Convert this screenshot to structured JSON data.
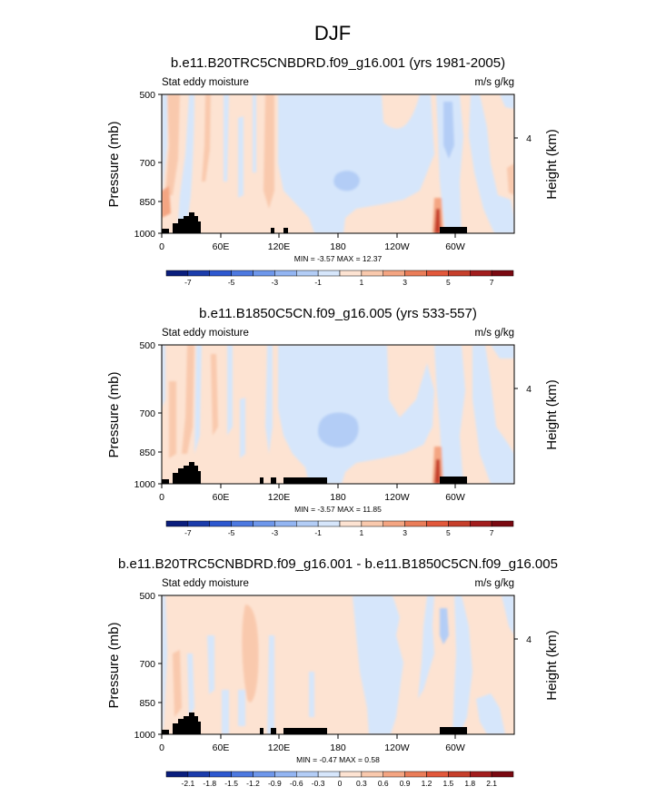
{
  "page_title": "DJF",
  "colors": {
    "pos": [
      "#fde3d2",
      "#f9c9ad",
      "#f4a582",
      "#ea7d59",
      "#e2583b",
      "#c63f2b",
      "#a21d1d",
      "#7a0911"
    ],
    "neg": [
      "#d6e6fb",
      "#b3cdf6",
      "#93b5f2",
      "#6e97eb",
      "#4d79e0",
      "#2d58cf",
      "#1b3cab",
      "#0a1e7d"
    ],
    "land": "#000000"
  },
  "chart_data": [
    {
      "type": "contour",
      "title": "b.e11.B20TRC5CNBDRD.f09_g16.001 (yrs 1981-2005)",
      "left_label": "Stat eddy moisture",
      "right_label": "m/s g/kg",
      "ylabel": "Pressure (mb)",
      "ylabel_right": "Height (km)",
      "y_ticks": [
        "500",
        "700",
        "850",
        "1000"
      ],
      "y_tick_values": [
        500,
        700,
        850,
        1000
      ],
      "x_ticks": [
        "0",
        "60E",
        "120E",
        "180",
        "120W",
        "60W"
      ],
      "x_tick_values": [
        0,
        60,
        120,
        180,
        240,
        300
      ],
      "xlim": [
        0,
        360
      ],
      "ylim": [
        1000,
        500
      ],
      "right_ticks": [
        "4"
      ],
      "stats": "MIN = -3.57   MAX = 12.37",
      "colorbar": {
        "levels": [
          -8,
          -7,
          -6,
          -5,
          -4,
          -3,
          -2,
          -1,
          0,
          1,
          2,
          3,
          4,
          5,
          6,
          7,
          8
        ],
        "labels": [
          "-7",
          "-5",
          "-3",
          "-1",
          "1",
          "3",
          "5",
          "7"
        ]
      }
    },
    {
      "type": "contour",
      "title": "b.e11.B1850C5CN.f09_g16.005 (yrs 533-557)",
      "left_label": "Stat eddy moisture",
      "right_label": "m/s g/kg",
      "ylabel": "Pressure (mb)",
      "ylabel_right": "Height (km)",
      "y_ticks": [
        "500",
        "700",
        "850",
        "1000"
      ],
      "y_tick_values": [
        500,
        700,
        850,
        1000
      ],
      "x_ticks": [
        "0",
        "60E",
        "120E",
        "180",
        "120W",
        "60W"
      ],
      "x_tick_values": [
        0,
        60,
        120,
        180,
        240,
        300
      ],
      "xlim": [
        0,
        360
      ],
      "ylim": [
        1000,
        500
      ],
      "right_ticks": [
        "4"
      ],
      "stats": "MIN = -3.57   MAX = 11.85",
      "colorbar": {
        "levels": [
          -8,
          -7,
          -6,
          -5,
          -4,
          -3,
          -2,
          -1,
          0,
          1,
          2,
          3,
          4,
          5,
          6,
          7,
          8
        ],
        "labels": [
          "-7",
          "-5",
          "-3",
          "-1",
          "1",
          "3",
          "5",
          "7"
        ]
      }
    },
    {
      "type": "contour",
      "title": "b.e11.B20TRC5CNBDRD.f09_g16.001 - b.e11.B1850C5CN.f09_g16.005",
      "left_label": "Stat eddy moisture",
      "right_label": "m/s g/kg",
      "ylabel": "Pressure (mb)",
      "ylabel_right": "Height (km)",
      "y_ticks": [
        "500",
        "700",
        "850",
        "1000"
      ],
      "y_tick_values": [
        500,
        700,
        850,
        1000
      ],
      "x_ticks": [
        "0",
        "60E",
        "120E",
        "180",
        "120W",
        "60W"
      ],
      "x_tick_values": [
        0,
        60,
        120,
        180,
        240,
        300
      ],
      "xlim": [
        0,
        360
      ],
      "ylim": [
        1000,
        500
      ],
      "right_ticks": [
        "4"
      ],
      "stats": "MIN = -0.47   MAX =  0.58",
      "colorbar": {
        "levels": [
          -2.4,
          -2.1,
          -1.8,
          -1.5,
          -1.2,
          -0.9,
          -0.6,
          -0.3,
          0,
          0.3,
          0.6,
          0.9,
          1.2,
          1.5,
          1.8,
          2.1,
          2.4
        ],
        "labels": [
          "-2.1",
          "-1.8",
          "-1.5",
          "-1.2",
          "-0.9",
          "-0.6",
          "-0.3",
          "0",
          "0.3",
          "0.6",
          "0.9",
          "1.2",
          "1.5",
          "1.8",
          "2.1"
        ]
      }
    }
  ]
}
